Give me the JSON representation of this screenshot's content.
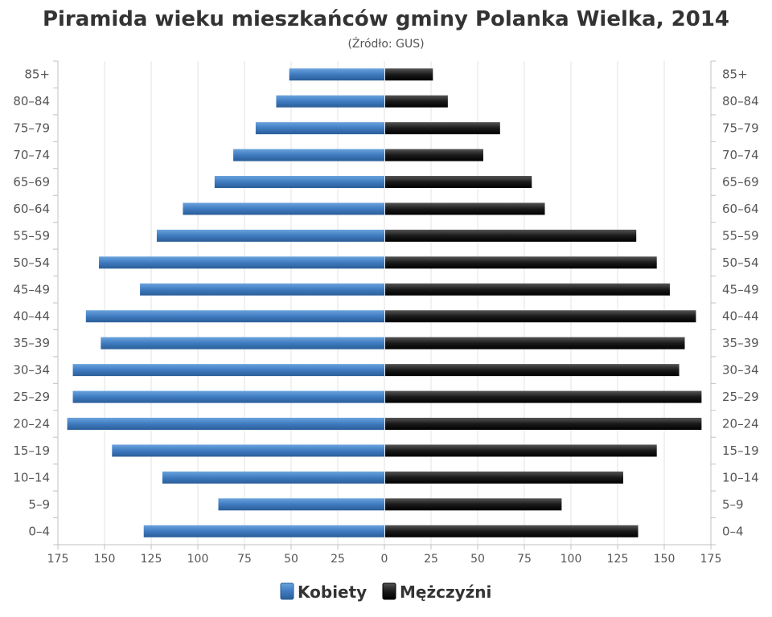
{
  "chart_data": {
    "type": "bar",
    "orientation": "horizontal-pyramid",
    "title": "Piramida wieku mieszkańców gminy Polanka Wielka, 2014",
    "subtitle": "(Źródło: GUS)",
    "categories": [
      "85+",
      "80–84",
      "75–79",
      "70–74",
      "65–69",
      "60–64",
      "55–59",
      "50–54",
      "45–49",
      "40–44",
      "35–39",
      "30–34",
      "25–29",
      "20–24",
      "15–19",
      "10–14",
      "5–9",
      "0–4"
    ],
    "series": [
      {
        "name": "Kobiety",
        "side": "left",
        "color": "#3f7bc0",
        "values": [
          51,
          58,
          69,
          81,
          91,
          108,
          122,
          153,
          131,
          160,
          152,
          167,
          167,
          170,
          146,
          119,
          89,
          129
        ]
      },
      {
        "name": "Mężczyźni",
        "side": "right",
        "color": "#1a1a1a",
        "values": [
          26,
          34,
          62,
          53,
          79,
          86,
          135,
          146,
          153,
          167,
          161,
          158,
          170,
          170,
          146,
          128,
          95,
          136
        ]
      }
    ],
    "xlim": [
      -175,
      175
    ],
    "xticks": [
      "175",
      "150",
      "125",
      "100",
      "75",
      "50",
      "25",
      "0",
      "25",
      "50",
      "75",
      "100",
      "125",
      "150",
      "175"
    ],
    "grid": true,
    "legend_position": "bottom-center"
  }
}
